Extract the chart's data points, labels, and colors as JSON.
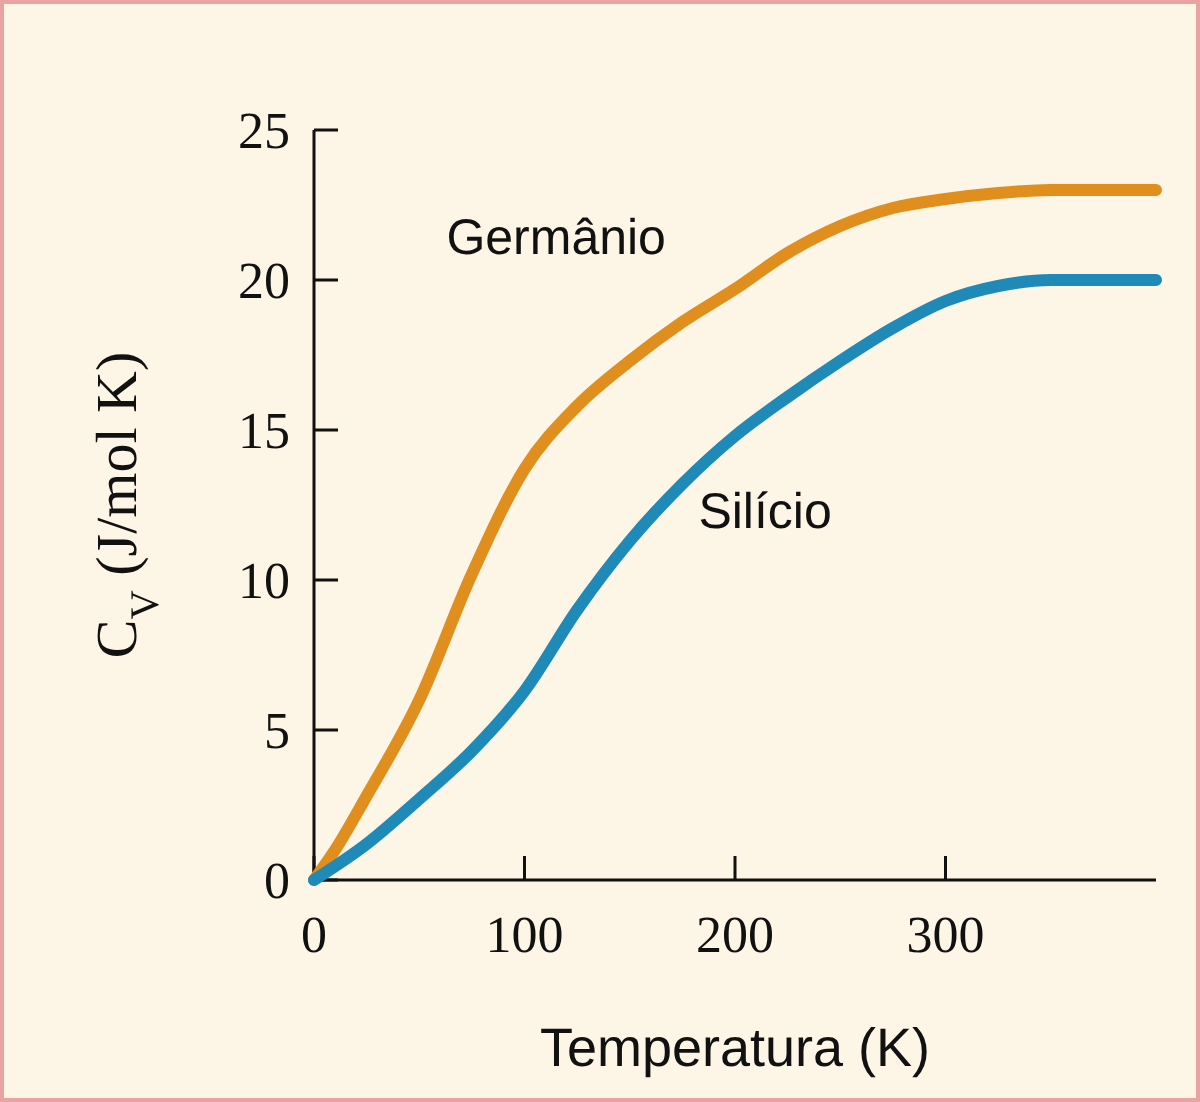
{
  "chart_data": {
    "type": "line",
    "xlabel": "Temperatura (K)",
    "ylabel": "C$_{V}$  (J/mol K)",
    "xlim": [
      0,
      400
    ],
    "ylim": [
      0,
      25
    ],
    "xticks": [
      0,
      100,
      200,
      300
    ],
    "yticks": [
      0,
      5,
      10,
      15,
      20,
      25
    ],
    "grid": false,
    "legend": false,
    "marker": "none",
    "line_style": "solid",
    "series": [
      {
        "name": "Germânio",
        "color": "#e08f1e",
        "x": [
          0,
          10,
          25,
          50,
          75,
          100,
          125,
          150,
          175,
          200,
          225,
          250,
          275,
          300,
          325,
          350,
          375,
          400
        ],
        "values": [
          0,
          1,
          2.8,
          6,
          10.2,
          13.7,
          15.8,
          17.3,
          18.6,
          19.7,
          20.9,
          21.8,
          22.4,
          22.7,
          22.9,
          23,
          23,
          23
        ]
      },
      {
        "name": "Silício",
        "color": "#1f8ab8",
        "x": [
          0,
          25,
          50,
          75,
          100,
          125,
          150,
          175,
          200,
          225,
          250,
          275,
          300,
          325,
          350,
          375,
          400
        ],
        "values": [
          0,
          1.2,
          2.7,
          4.3,
          6.3,
          9,
          11.3,
          13.2,
          14.8,
          16.1,
          17.3,
          18.4,
          19.3,
          19.8,
          20,
          20,
          20
        ]
      }
    ]
  }
}
